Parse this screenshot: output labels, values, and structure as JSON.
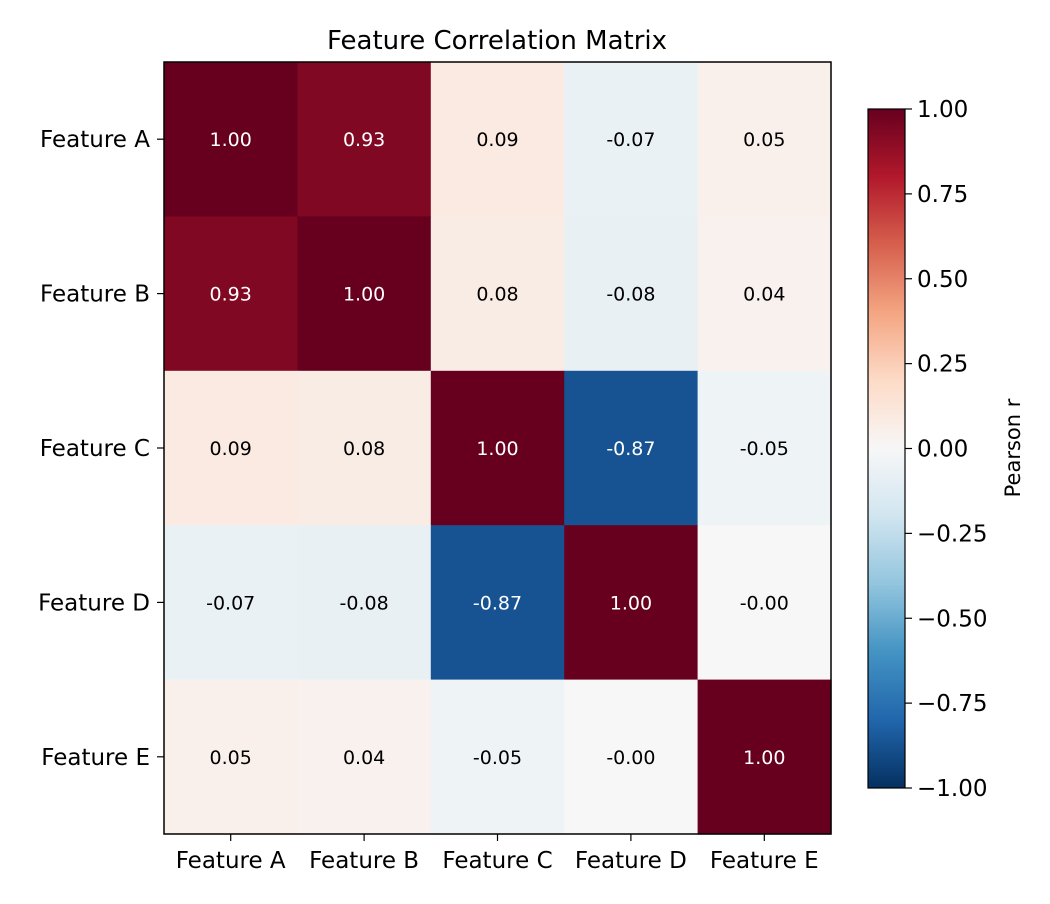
{
  "chart_data": {
    "type": "heatmap",
    "title": "Feature Correlation Matrix",
    "x_labels": [
      "Feature A",
      "Feature B",
      "Feature C",
      "Feature D",
      "Feature E"
    ],
    "y_labels": [
      "Feature A",
      "Feature B",
      "Feature C",
      "Feature D",
      "Feature E"
    ],
    "values": [
      [
        1.0,
        0.93,
        0.09,
        -0.07,
        0.05
      ],
      [
        0.93,
        1.0,
        0.08,
        -0.08,
        0.04
      ],
      [
        0.09,
        0.08,
        1.0,
        -0.87,
        -0.05
      ],
      [
        -0.07,
        -0.08,
        -0.87,
        1.0,
        -0.0
      ],
      [
        0.05,
        0.04,
        -0.05,
        -0.0,
        1.0
      ]
    ],
    "cell_labels": [
      [
        "1.00",
        "0.93",
        "0.09",
        "-0.07",
        "0.05"
      ],
      [
        "0.93",
        "1.00",
        "0.08",
        "-0.08",
        "0.04"
      ],
      [
        "0.09",
        "0.08",
        "1.00",
        "-0.87",
        "-0.05"
      ],
      [
        "-0.07",
        "-0.08",
        "-0.87",
        "1.00",
        "-0.00"
      ],
      [
        "0.05",
        "0.04",
        "-0.05",
        "-0.00",
        "1.00"
      ]
    ],
    "colorbar": {
      "label": "Pearson r",
      "range": [
        -1.0,
        1.0
      ],
      "ticks": [
        1.0,
        0.75,
        0.5,
        0.25,
        0.0,
        -0.25,
        -0.5,
        -0.75,
        -1.0
      ],
      "tick_labels": [
        "1.00",
        "0.75",
        "0.50",
        "0.25",
        "0.00",
        "−0.25",
        "−0.50",
        "−0.75",
        "−1.00"
      ]
    },
    "colormap": {
      "name": "RdBu_r",
      "stops": [
        "#053061",
        "#2166ac",
        "#4393c3",
        "#92c5de",
        "#d1e5f0",
        "#f7f7f7",
        "#fddbc7",
        "#f4a582",
        "#d6604d",
        "#b2182b",
        "#67001f"
      ]
    },
    "grid": false
  }
}
